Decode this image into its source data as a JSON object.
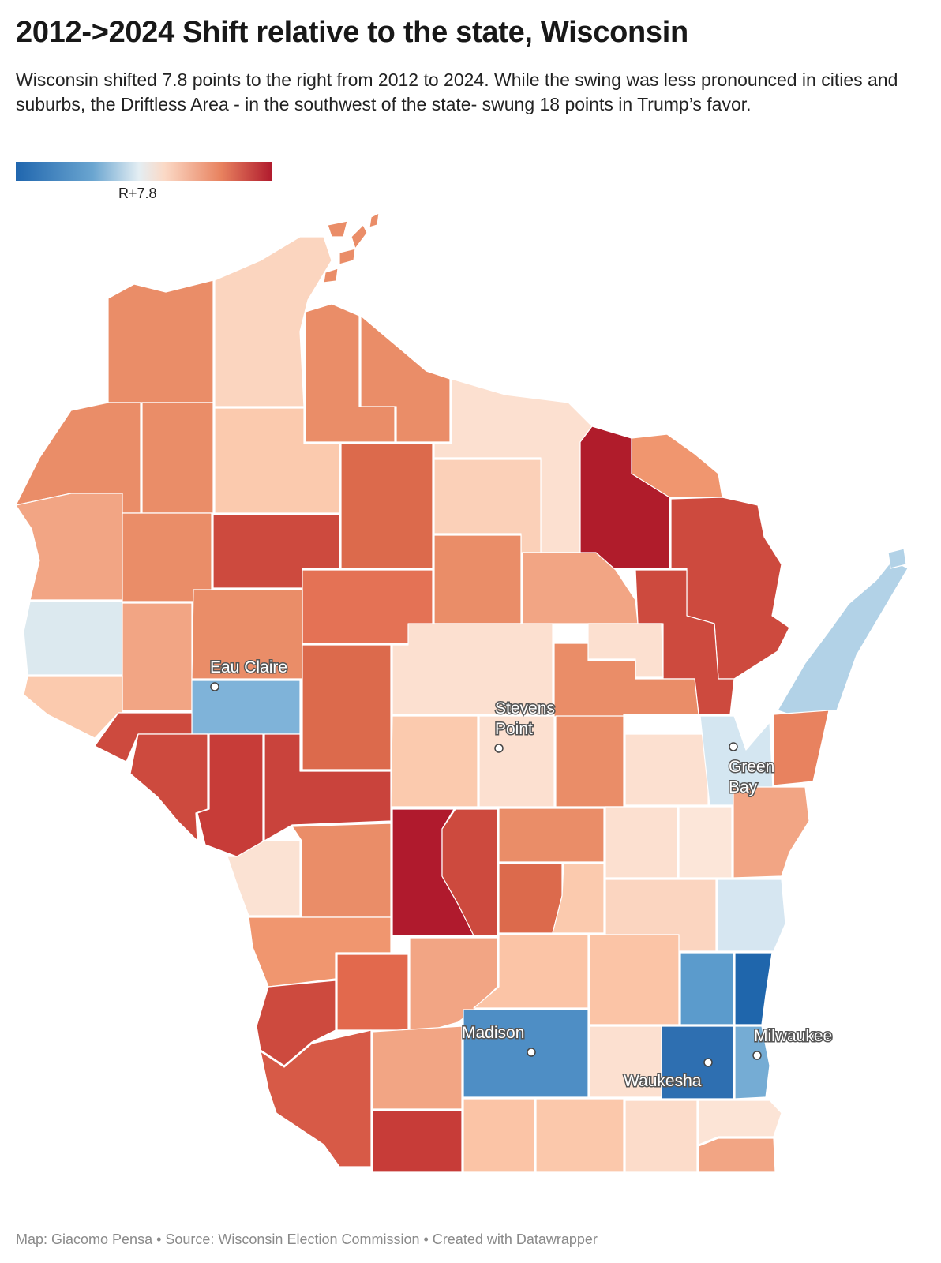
{
  "title": "2012->2024 Shift relative to the state, Wisconsin",
  "description": "Wisconsin shifted 7.8 points to the right from 2012 to 2024. While the swing was less pronounced in cities and suburbs, the Driftless Area - in the southwest of the state- swung 18 points in Trump’s favor.",
  "legend": {
    "midpoint_label": "R+7.8",
    "colors": [
      "#2066ae",
      "#6aa5d0",
      "#d9e8f0",
      "#fbd9c6",
      "#e8825f",
      "#b01a2d"
    ]
  },
  "cities": {
    "eau_claire": "Eau Claire",
    "stevens_point_1": "Stevens",
    "stevens_point_2": "Point",
    "green_bay_1": "Green",
    "green_bay_2": "Bay",
    "madison": "Madison",
    "waukesha": "Waukesha",
    "milwaukee": "Milwaukee"
  },
  "footer": "Map: Giacomo Pensa • Source: Wisconsin Election Commission • Created with Datawrapper"
}
